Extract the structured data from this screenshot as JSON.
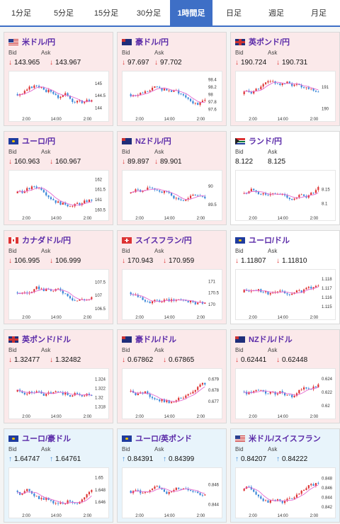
{
  "tabs": [
    "1分足",
    "5分足",
    "15分足",
    "30分足",
    "1時間足",
    "日足",
    "週足",
    "月足"
  ],
  "active_tab": "1時間足",
  "labels": {
    "bid": "Bid",
    "ask": "Ask"
  },
  "x_ticks": [
    "2:00",
    "14:00",
    "2:00"
  ],
  "colors": {
    "accent": "#3e6fc6",
    "up": "#d33",
    "down": "#3a87d8",
    "ma": "#e46ad0"
  },
  "cards": [
    {
      "pair": "米ドル/円",
      "flag": "us",
      "bg": "pink",
      "dir": "down",
      "bid": "143.965",
      "ask": "143.967",
      "y_ticks": [
        "145",
        "144.5",
        "144"
      ],
      "ylim": [
        143.8,
        145.3
      ]
    },
    {
      "pair": "豪ドル/円",
      "flag": "au",
      "bg": "pink",
      "dir": "down",
      "bid": "97.697",
      "ask": "97.702",
      "y_ticks": [
        "98.4",
        "98.2",
        "98",
        "97.8",
        "97.6"
      ],
      "ylim": [
        97.5,
        98.5
      ]
    },
    {
      "pair": "英ポンド/円",
      "flag": "gb",
      "bg": "pink",
      "dir": "down",
      "bid": "190.724",
      "ask": "190.731",
      "y_ticks": [
        "191",
        "190"
      ],
      "ylim": [
        189.8,
        191.5
      ]
    },
    {
      "pair": "ユーロ/円",
      "flag": "eu",
      "bg": "pink",
      "dir": "down",
      "bid": "160.963",
      "ask": "160.967",
      "y_ticks": [
        "162",
        "161.5",
        "161",
        "160.5"
      ],
      "ylim": [
        160.4,
        162.2
      ]
    },
    {
      "pair": "NZドル/円",
      "flag": "nz",
      "bg": "pink",
      "dir": "down",
      "bid": "89.897",
      "ask": "89.901",
      "y_ticks": [
        "90",
        "89.5"
      ],
      "ylim": [
        89.3,
        90.3
      ]
    },
    {
      "pair": "ランド/円",
      "flag": "za",
      "bg": "white",
      "dir": "none",
      "bid": "8.122",
      "ask": "8.125",
      "y_ticks": [
        "8.15",
        "8.1"
      ],
      "ylim": [
        8.07,
        8.2
      ]
    },
    {
      "pair": "カナダドル/円",
      "flag": "ca",
      "bg": "pink",
      "dir": "down",
      "bid": "106.995",
      "ask": "106.999",
      "y_ticks": [
        "107.5",
        "107",
        "106.5"
      ],
      "ylim": [
        106.4,
        107.8
      ]
    },
    {
      "pair": "スイスフラン/円",
      "flag": "ch",
      "bg": "pink",
      "dir": "down",
      "bid": "170.943",
      "ask": "170.959",
      "y_ticks": [
        "171",
        "170.5",
        "170"
      ],
      "ylim": [
        169.7,
        171.3
      ]
    },
    {
      "pair": "ユーロ/ドル",
      "flag": "eu",
      "bg": "white",
      "dir": "down",
      "bid": "1.11807",
      "ask": "1.11810",
      "y_ticks": [
        "1.118",
        "1.117",
        "1.116",
        "1.115"
      ],
      "ylim": [
        1.1145,
        1.1185
      ]
    },
    {
      "pair": "英ポンド/ドル",
      "flag": "gb",
      "bg": "pink",
      "dir": "down",
      "bid": "1.32477",
      "ask": "1.32482",
      "y_ticks": [
        "1.324",
        "1.322",
        "1.32",
        "1.318"
      ],
      "ylim": [
        1.3172,
        1.3252
      ]
    },
    {
      "pair": "豪ドル/ドル",
      "flag": "au",
      "bg": "pink",
      "dir": "down",
      "bid": "0.67862",
      "ask": "0.67865",
      "y_ticks": [
        "0.679",
        "0.678",
        "0.677"
      ],
      "ylim": [
        0.6762,
        0.6795
      ]
    },
    {
      "pair": "NZドル/ドル",
      "flag": "nz",
      "bg": "pink",
      "dir": "down",
      "bid": "0.62441",
      "ask": "0.62448",
      "y_ticks": [
        "0.624",
        "0.622",
        "0.62"
      ],
      "ylim": [
        0.6193,
        0.6248
      ]
    },
    {
      "pair": "ユーロ/豪ドル",
      "flag": "eu",
      "bg": "blue",
      "dir": "up",
      "bid": "1.64747",
      "ask": "1.64761",
      "y_ticks": [
        "1.65",
        "1.648",
        "1.646"
      ],
      "ylim": [
        1.6448,
        1.6508
      ]
    },
    {
      "pair": "ユーロ/英ポンド",
      "flag": "eu",
      "bg": "blue",
      "dir": "up",
      "bid": "0.84391",
      "ask": "0.84399",
      "y_ticks": [
        "0.846",
        "0.844"
      ],
      "ylim": [
        0.8435,
        0.8472
      ]
    },
    {
      "pair": "米ドル/スイスフラン",
      "flag": "us",
      "bg": "blue",
      "dir": "up",
      "bid": "0.84207",
      "ask": "0.84222",
      "y_ticks": [
        "0.848",
        "0.846",
        "0.844",
        "0.842"
      ],
      "ylim": [
        0.8415,
        0.8492
      ]
    }
  ]
}
